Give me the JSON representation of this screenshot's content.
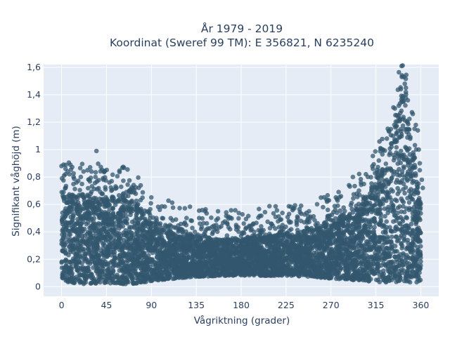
{
  "chart_data": {
    "type": "scatter",
    "title_lines": [
      "År 1979 - 2019",
      "Koordinat (Sweref 99 TM): E 356821, N 6235240"
    ],
    "xlabel": "Vågriktning (grader)",
    "ylabel": "Signifikant våghöjd (m)",
    "xlim": [
      -18,
      378
    ],
    "ylim": [
      -0.07,
      1.62
    ],
    "x_ticks": [
      0,
      45,
      90,
      135,
      180,
      225,
      270,
      315,
      360
    ],
    "x_tick_labels": [
      "0",
      "45",
      "90",
      "135",
      "180",
      "225",
      "270",
      "315",
      "360"
    ],
    "y_ticks": [
      0,
      0.2,
      0.4,
      0.6,
      0.8,
      1,
      1.2,
      1.4,
      1.6
    ],
    "y_tick_labels": [
      "0",
      "0,2",
      "0,4",
      "0,6",
      "0,8",
      "1",
      "1,2",
      "1,4",
      "1,6"
    ],
    "grid": true,
    "legend": "none",
    "colors": {
      "marker": "#33576e",
      "plot_bg": "#e5ecf6",
      "grid": "#ffffff",
      "text": "#2a3f5f"
    },
    "series": [
      {
        "marker_opacity": 0.75,
        "dense_envelope": [
          {
            "x": 0,
            "y_min": 0.04,
            "y_max": 0.69
          },
          {
            "x": 10,
            "y_min": 0.03,
            "y_max": 0.65
          },
          {
            "x": 20,
            "y_min": 0.02,
            "y_max": 0.66
          },
          {
            "x": 30,
            "y_min": 0.02,
            "y_max": 0.65
          },
          {
            "x": 45,
            "y_min": 0.02,
            "y_max": 0.63
          },
          {
            "x": 60,
            "y_min": 0.02,
            "y_max": 0.62
          },
          {
            "x": 70,
            "y_min": 0.02,
            "y_max": 0.62
          },
          {
            "x": 80,
            "y_min": 0.03,
            "y_max": 0.54
          },
          {
            "x": 90,
            "y_min": 0.04,
            "y_max": 0.47
          },
          {
            "x": 100,
            "y_min": 0.05,
            "y_max": 0.42
          },
          {
            "x": 115,
            "y_min": 0.06,
            "y_max": 0.38
          },
          {
            "x": 135,
            "y_min": 0.07,
            "y_max": 0.36
          },
          {
            "x": 160,
            "y_min": 0.08,
            "y_max": 0.34
          },
          {
            "x": 180,
            "y_min": 0.08,
            "y_max": 0.34
          },
          {
            "x": 200,
            "y_min": 0.08,
            "y_max": 0.36
          },
          {
            "x": 225,
            "y_min": 0.08,
            "y_max": 0.38
          },
          {
            "x": 250,
            "y_min": 0.07,
            "y_max": 0.41
          },
          {
            "x": 270,
            "y_min": 0.06,
            "y_max": 0.45
          },
          {
            "x": 290,
            "y_min": 0.05,
            "y_max": 0.52
          },
          {
            "x": 305,
            "y_min": 0.04,
            "y_max": 0.62
          },
          {
            "x": 320,
            "y_min": 0.03,
            "y_max": 0.82
          },
          {
            "x": 330,
            "y_min": 0.03,
            "y_max": 1.02
          },
          {
            "x": 338,
            "y_min": 0.03,
            "y_max": 1.25
          },
          {
            "x": 342,
            "y_min": 0.03,
            "y_max": 1.38
          },
          {
            "x": 348,
            "y_min": 0.03,
            "y_max": 1.15
          },
          {
            "x": 355,
            "y_min": 0.03,
            "y_max": 0.85
          },
          {
            "x": 360,
            "y_min": 0.04,
            "y_max": 0.62
          }
        ],
        "outliers": [
          [
            0,
            0.88
          ],
          [
            2,
            0.89
          ],
          [
            4,
            0.86
          ],
          [
            6,
            0.84
          ],
          [
            8,
            0.82
          ],
          [
            12,
            0.8
          ],
          [
            22,
            0.84
          ],
          [
            26,
            0.85
          ],
          [
            30,
            0.84
          ],
          [
            34,
            0.8
          ],
          [
            42,
            0.78
          ],
          [
            48,
            0.76
          ],
          [
            50,
            0.7
          ],
          [
            55,
            0.72
          ],
          [
            62,
            0.68
          ],
          [
            65,
            0.69
          ],
          [
            68,
            0.7
          ],
          [
            69,
            0.69
          ],
          [
            35,
            0.99
          ],
          [
            43,
            0.84
          ],
          [
            15,
            0.76
          ],
          [
            4,
            0.72
          ],
          [
            228,
            0.53
          ],
          [
            232,
            0.57
          ],
          [
            240,
            0.59
          ],
          [
            248,
            0.55
          ],
          [
            262,
            0.58
          ],
          [
            266,
            0.62
          ],
          [
            268,
            0.63
          ],
          [
            276,
            0.64
          ],
          [
            280,
            0.66
          ],
          [
            288,
            0.74
          ],
          [
            292,
            0.8
          ],
          [
            298,
            0.7
          ],
          [
            300,
            0.76
          ],
          [
            305,
            0.82
          ],
          [
            312,
            0.86
          ],
          [
            318,
            0.92
          ],
          [
            322,
            1.0
          ],
          [
            326,
            1.08
          ],
          [
            330,
            1.15
          ],
          [
            332,
            1.1
          ],
          [
            336,
            1.25
          ],
          [
            338,
            1.32
          ],
          [
            340,
            1.44
          ],
          [
            341,
            1.53
          ],
          [
            343,
            1.53
          ],
          [
            344,
            1.48
          ],
          [
            345,
            1.42
          ],
          [
            347,
            1.36
          ],
          [
            352,
            1.26
          ],
          [
            355,
            1.18
          ],
          [
            357,
            1.14
          ],
          [
            358,
            1.0
          ],
          [
            359,
            0.9
          ],
          [
            359,
            0.85
          ],
          [
            361,
            0.78
          ],
          [
            362,
            0.72
          ],
          [
            175,
            0.45
          ],
          [
            185,
            0.43
          ],
          [
            200,
            0.44
          ],
          [
            210,
            0.46
          ],
          [
            220,
            0.49
          ],
          [
            155,
            0.45
          ],
          [
            160,
            0.44
          ],
          [
            140,
            0.42
          ],
          [
            120,
            0.42
          ],
          [
            110,
            0.44
          ],
          [
            95,
            0.5
          ],
          [
            88,
            0.54
          ]
        ]
      }
    ]
  }
}
